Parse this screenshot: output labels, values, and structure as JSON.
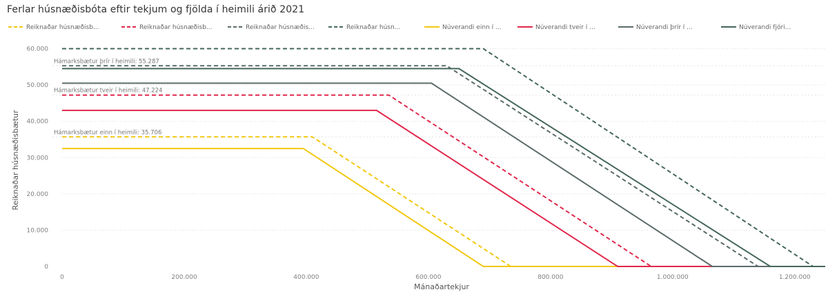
{
  "chart_data": {
    "type": "line",
    "title": "Ferlar húsnæðisbóta eftir tekjum og fjölda í heimili árið 2021",
    "xlabel": "Mánaðartekjur",
    "ylabel": "Reiknaðar húsnæðisbætur",
    "xlim": [
      0,
      1250000
    ],
    "ylim": [
      0,
      62000
    ],
    "x_ticks": [
      {
        "value": 0,
        "label": "0"
      },
      {
        "value": 200000,
        "label": "200.000"
      },
      {
        "value": 400000,
        "label": "400.000"
      },
      {
        "value": 600000,
        "label": "600.000"
      },
      {
        "value": 800000,
        "label": "800.000"
      },
      {
        "value": 1000000,
        "label": "1.000.000"
      },
      {
        "value": 1200000,
        "label": "1.200.000"
      }
    ],
    "y_ticks": [
      {
        "value": 0,
        "label": "0"
      },
      {
        "value": 10000,
        "label": "10.000"
      },
      {
        "value": 20000,
        "label": "20.000"
      },
      {
        "value": 30000,
        "label": "30.000"
      },
      {
        "value": 40000,
        "label": "40.000"
      },
      {
        "value": 50000,
        "label": "50.000"
      },
      {
        "value": 60000,
        "label": "60.000"
      }
    ],
    "grid": "horizontal-dotted",
    "legend": "top-left",
    "series": [
      {
        "name": "Reiknaðar húsnæðisb...",
        "color": "#F2C811",
        "dash": true,
        "x": [
          0,
          410000,
          735000,
          1250000
        ],
        "y": [
          35706,
          35706,
          0,
          0
        ]
      },
      {
        "name": "Reiknaðar húsnæðisb...",
        "color": "#E0284B",
        "dash": true,
        "x": [
          0,
          535000,
          965000,
          1250000
        ],
        "y": [
          47224,
          47224,
          0,
          0
        ]
      },
      {
        "name": "Reiknaðar húsnæðis...",
        "color": "#5B6B6B",
        "dash": true,
        "x": [
          0,
          630000,
          1140000,
          1250000
        ],
        "y": [
          55287,
          55287,
          0,
          0
        ]
      },
      {
        "name": "Reiknaðar húsn...",
        "color": "#45675A",
        "dash": true,
        "x": [
          0,
          690000,
          1230000,
          1250000
        ],
        "y": [
          60000,
          60000,
          0,
          0
        ]
      },
      {
        "name": "Núverandi einn í ...",
        "color": "#F2C811",
        "dash": false,
        "x": [
          0,
          395000,
          690000,
          1250000
        ],
        "y": [
          32500,
          32500,
          0,
          0
        ]
      },
      {
        "name": "Núverandi tveir í ...",
        "color": "#E0284B",
        "dash": false,
        "x": [
          0,
          515000,
          910000,
          1250000
        ],
        "y": [
          43000,
          43000,
          0,
          0
        ]
      },
      {
        "name": "Núverandi þrír í ...",
        "color": "#5B6B6B",
        "dash": false,
        "x": [
          0,
          605000,
          1065000,
          1250000
        ],
        "y": [
          50500,
          50500,
          0,
          0
        ]
      },
      {
        "name": "Núverandi fjóri...",
        "color": "#45675A",
        "dash": false,
        "x": [
          0,
          650000,
          1160000,
          1250000
        ],
        "y": [
          54500,
          54500,
          0,
          0
        ]
      }
    ],
    "reference_lines": [
      {
        "label": "Hámarksbætur einn í heimili: 35.706",
        "value": 35706
      },
      {
        "label": "Hámarksbætur tveir í heimili: 47.224",
        "value": 47224
      },
      {
        "label": "Hámarksbætur þrír í heimili: 55.287",
        "value": 55287
      }
    ]
  }
}
